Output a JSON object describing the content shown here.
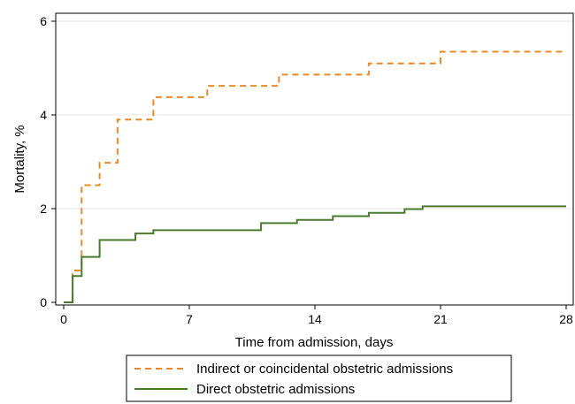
{
  "chart_data": {
    "type": "line",
    "step": true,
    "xlabel": "Time from admission, days",
    "ylabel": "Mortality, %",
    "xlim": [
      0,
      28
    ],
    "ylim": [
      0,
      6
    ],
    "xticks": [
      0,
      7,
      14,
      21,
      28
    ],
    "yticks": [
      0,
      2,
      4,
      6
    ],
    "grid": "horizontal",
    "legend_position": "bottom",
    "series": [
      {
        "name": "Indirect or coincidental obstetric admissions",
        "color": "#e8892a",
        "dash": "dashed",
        "x": [
          0,
          0.5,
          0.5,
          1,
          1,
          2,
          2,
          3,
          3,
          5,
          5,
          8,
          8,
          12,
          12,
          17,
          17,
          21,
          21,
          28
        ],
        "y": [
          0,
          0,
          0.68,
          0.68,
          2.5,
          2.5,
          2.98,
          2.98,
          3.9,
          3.9,
          4.38,
          4.38,
          4.62,
          4.62,
          4.86,
          4.86,
          5.1,
          5.1,
          5.35,
          5.35
        ]
      },
      {
        "name": "Direct obstetric admissions",
        "color": "#4a7a2e",
        "dash": "solid",
        "x": [
          0,
          0.5,
          0.5,
          1,
          1,
          2,
          2,
          4,
          4,
          5,
          5,
          11,
          11,
          13,
          13,
          15,
          15,
          17,
          17,
          19,
          19,
          20,
          20,
          28
        ],
        "y": [
          0,
          0,
          0.56,
          0.56,
          0.97,
          0.97,
          1.33,
          1.33,
          1.47,
          1.47,
          1.54,
          1.54,
          1.69,
          1.69,
          1.76,
          1.76,
          1.84,
          1.84,
          1.91,
          1.91,
          1.99,
          1.99,
          2.05,
          2.05
        ]
      }
    ]
  }
}
